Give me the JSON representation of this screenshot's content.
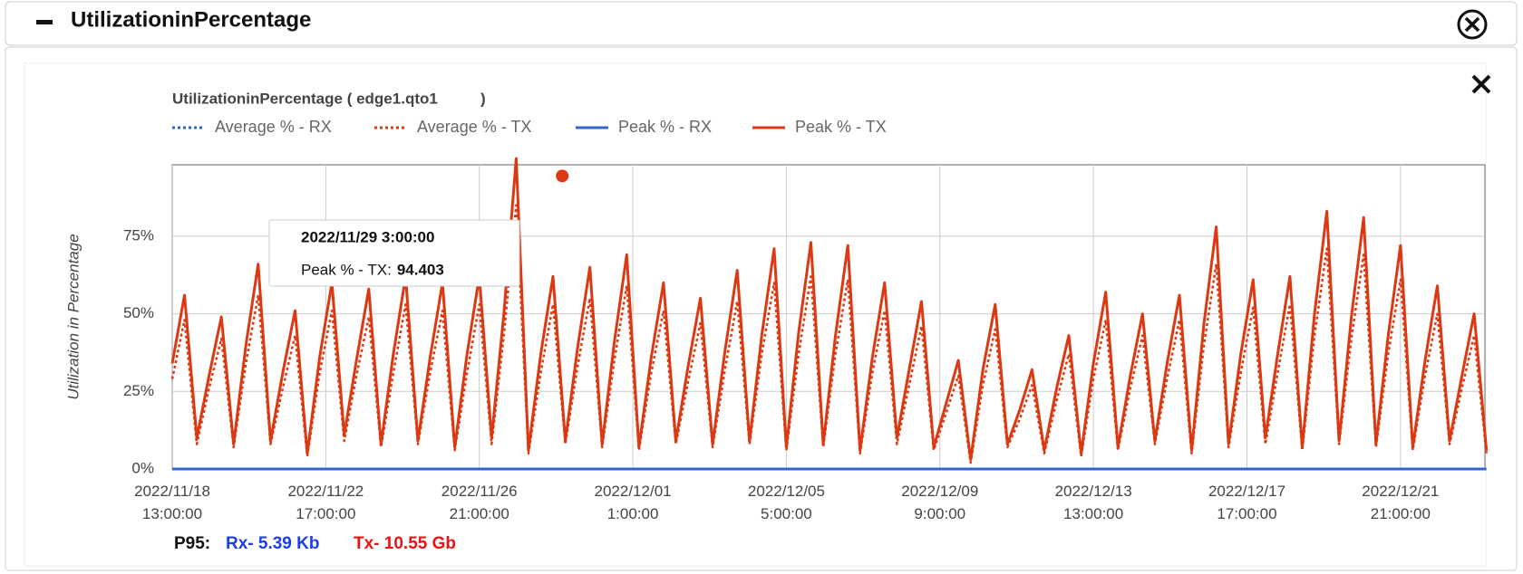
{
  "panel": {
    "title": "UtilizationinPercentage"
  },
  "footer": {
    "label": "P95:",
    "rx": "Rx- 5.39 Kb",
    "tx": "Tx- 10.55 Gb"
  },
  "chart_data": {
    "type": "line",
    "title": "UtilizationinPercentage ( edge1.qto1          )",
    "y_label": "Utilization in Percentage",
    "ylim": [
      0,
      98
    ],
    "yticks": [
      {
        "value": 0,
        "label": "0%"
      },
      {
        "value": 25,
        "label": "25%"
      },
      {
        "value": 50,
        "label": "50%"
      },
      {
        "value": 75,
        "label": "75%"
      }
    ],
    "xlim": [
      "2022/11/18 13:00:00",
      "2022/12/24 4:00:00"
    ],
    "xticks": [
      "2022/11/18 13:00:00",
      "2022/11/22 17:00:00",
      "2022/11/26 21:00:00",
      "2022/12/01 1:00:00",
      "2022/12/05 5:00:00",
      "2022/12/09 9:00:00",
      "2022/12/13 13:00:00",
      "2022/12/17 17:00:00",
      "2022/12/21 21:00:00"
    ],
    "grid": true,
    "x": [
      "2022/11/18 13:00:00",
      "2022/11/18 21:00:00",
      "2022/11/19 5:00:00",
      "2022/11/19 13:00:00",
      "2022/11/19 21:00:00",
      "2022/11/20 5:00:00",
      "2022/11/20 13:00:00",
      "2022/11/20 21:00:00",
      "2022/11/21 5:00:00",
      "2022/11/21 13:00:00",
      "2022/11/21 21:00:00",
      "2022/11/22 5:00:00",
      "2022/11/22 13:00:00",
      "2022/11/22 21:00:00",
      "2022/11/23 5:00:00",
      "2022/11/23 13:00:00",
      "2022/11/23 21:00:00",
      "2022/11/24 5:00:00",
      "2022/11/24 13:00:00",
      "2022/11/24 21:00:00",
      "2022/11/25 5:00:00",
      "2022/11/25 13:00:00",
      "2022/11/25 21:00:00",
      "2022/11/26 5:00:00",
      "2022/11/26 13:00:00",
      "2022/11/26 21:00:00",
      "2022/11/27 5:00:00",
      "2022/11/27 13:00:00",
      "2022/11/27 21:00:00",
      "2022/11/28 5:00:00",
      "2022/11/28 13:00:00",
      "2022/11/28 21:00:00",
      "2022/11/29 5:00:00",
      "2022/11/29 13:00:00",
      "2022/11/29 21:00:00",
      "2022/11/30 5:00:00",
      "2022/11/30 13:00:00",
      "2022/11/30 21:00:00",
      "2022/12/01 5:00:00",
      "2022/12/01 13:00:00",
      "2022/12/01 21:00:00",
      "2022/12/02 5:00:00",
      "2022/12/02 13:00:00",
      "2022/12/02 21:00:00",
      "2022/12/03 5:00:00",
      "2022/12/03 13:00:00",
      "2022/12/03 21:00:00",
      "2022/12/04 5:00:00",
      "2022/12/04 13:00:00",
      "2022/12/04 21:00:00",
      "2022/12/05 5:00:00",
      "2022/12/05 13:00:00",
      "2022/12/05 21:00:00",
      "2022/12/06 5:00:00",
      "2022/12/06 13:00:00",
      "2022/12/06 21:00:00",
      "2022/12/07 5:00:00",
      "2022/12/07 13:00:00",
      "2022/12/07 21:00:00",
      "2022/12/08 5:00:00",
      "2022/12/08 13:00:00",
      "2022/12/08 21:00:00",
      "2022/12/09 5:00:00",
      "2022/12/09 13:00:00",
      "2022/12/09 21:00:00",
      "2022/12/10 5:00:00",
      "2022/12/10 13:00:00",
      "2022/12/10 21:00:00",
      "2022/12/11 5:00:00",
      "2022/12/11 13:00:00",
      "2022/12/11 21:00:00",
      "2022/12/12 5:00:00",
      "2022/12/12 13:00:00",
      "2022/12/12 21:00:00",
      "2022/12/13 5:00:00",
      "2022/12/13 13:00:00",
      "2022/12/13 21:00:00",
      "2022/12/14 5:00:00",
      "2022/12/14 13:00:00",
      "2022/12/14 21:00:00",
      "2022/12/15 5:00:00",
      "2022/12/15 13:00:00",
      "2022/12/15 21:00:00",
      "2022/12/16 5:00:00",
      "2022/12/16 13:00:00",
      "2022/12/16 21:00:00",
      "2022/12/17 5:00:00",
      "2022/12/17 13:00:00",
      "2022/12/17 21:00:00",
      "2022/12/18 5:00:00",
      "2022/12/18 13:00:00",
      "2022/12/18 21:00:00",
      "2022/12/19 5:00:00",
      "2022/12/19 13:00:00",
      "2022/12/19 21:00:00",
      "2022/12/20 5:00:00",
      "2022/12/20 13:00:00",
      "2022/12/20 21:00:00",
      "2022/12/21 5:00:00",
      "2022/12/21 13:00:00",
      "2022/12/21 21:00:00",
      "2022/12/22 5:00:00",
      "2022/12/22 13:00:00",
      "2022/12/22 21:00:00",
      "2022/12/23 5:00:00",
      "2022/12/23 13:00:00",
      "2022/12/23 21:00:00",
      "2022/12/24 5:00:00"
    ],
    "series": [
      {
        "name": "Average % - RX",
        "color": "#3366cc",
        "dash": true,
        "values": [
          0,
          0,
          0,
          0,
          0,
          0,
          0,
          0,
          0,
          0,
          0,
          0,
          0,
          0,
          0,
          0,
          0,
          0,
          0,
          0,
          0,
          0,
          0,
          0,
          0,
          0,
          0,
          0,
          0,
          0,
          0,
          0,
          0,
          0,
          0,
          0,
          0,
          0,
          0,
          0,
          0,
          0,
          0,
          0,
          0,
          0,
          0,
          0,
          0,
          0,
          0,
          0,
          0,
          0,
          0,
          0,
          0,
          0,
          0,
          0,
          0,
          0,
          0,
          0,
          0,
          0,
          0,
          0,
          0,
          0,
          0,
          0,
          0,
          0,
          0,
          0,
          0,
          0,
          0,
          0,
          0,
          0,
          0,
          0,
          0,
          0,
          0,
          0,
          0,
          0,
          0,
          0,
          0,
          0,
          0,
          0,
          0,
          0,
          0,
          0,
          0,
          0,
          0,
          0,
          0,
          0,
          0,
          0
        ]
      },
      {
        "name": "Average % - TX",
        "color": "#dc3912",
        "dash": true,
        "values": [
          29,
          48,
          8,
          26,
          42,
          7,
          34,
          56,
          8,
          26,
          43,
          4,
          31,
          51,
          9,
          30,
          49,
          7,
          31,
          53,
          8,
          31,
          51,
          6,
          31,
          53,
          8,
          43,
          85,
          5,
          31,
          53,
          8,
          33,
          55,
          7,
          35,
          59,
          6,
          31,
          51,
          8,
          28,
          47,
          7,
          32,
          54,
          8,
          37,
          60,
          6,
          37,
          62,
          7,
          37,
          61,
          5,
          31,
          51,
          8,
          27,
          46,
          6,
          18,
          30,
          2,
          27,
          45,
          7,
          16,
          27,
          5,
          22,
          37,
          4,
          29,
          48,
          6,
          26,
          43,
          8,
          29,
          48,
          5,
          40,
          66,
          7,
          31,
          52,
          8,
          31,
          53,
          6,
          43,
          71,
          8,
          42,
          69,
          7,
          37,
          61,
          6,
          30,
          50,
          8,
          26,
          43,
          5
        ]
      },
      {
        "name": "Peak % - RX",
        "color": "#3366cc",
        "dash": false,
        "values": [
          0,
          0,
          0,
          0,
          0,
          0,
          0,
          0,
          0,
          0,
          0,
          0,
          0,
          0,
          0,
          0,
          0,
          0,
          0,
          0,
          0,
          0,
          0,
          0,
          0,
          0,
          0,
          0,
          0,
          0,
          0,
          0,
          0,
          0,
          0,
          0,
          0,
          0,
          0,
          0,
          0,
          0,
          0,
          0,
          0,
          0,
          0,
          0,
          0,
          0,
          0,
          0,
          0,
          0,
          0,
          0,
          0,
          0,
          0,
          0,
          0,
          0,
          0,
          0,
          0,
          0,
          0,
          0,
          0,
          0,
          0,
          0,
          0,
          0,
          0,
          0,
          0,
          0,
          0,
          0,
          0,
          0,
          0,
          0,
          0,
          0,
          0,
          0,
          0,
          0,
          0,
          0,
          0,
          0,
          0,
          0,
          0,
          0,
          0,
          0,
          0,
          0,
          0,
          0,
          0,
          0,
          0,
          0
        ]
      },
      {
        "name": "Peak % - TX",
        "color": "#dc3912",
        "dash": false,
        "values": [
          34,
          56,
          10,
          30,
          49,
          8,
          40,
          66,
          9,
          31,
          51,
          5,
          36,
          60,
          11,
          35,
          58,
          8,
          37,
          62,
          9,
          36,
          60,
          7,
          37,
          62,
          10,
          50,
          100,
          6,
          37,
          62,
          9,
          39,
          65,
          8,
          41,
          69,
          7,
          36,
          60,
          9,
          33,
          55,
          8,
          38,
          64,
          9,
          43,
          71,
          7,
          44,
          73,
          8,
          43,
          72,
          6,
          36,
          60,
          10,
          32,
          54,
          7,
          21,
          35,
          3,
          32,
          53,
          8,
          19,
          32,
          6,
          26,
          43,
          5,
          34,
          57,
          7,
          30,
          50,
          9,
          34,
          56,
          6,
          47,
          78,
          8,
          37,
          61,
          10,
          37,
          62,
          7,
          50,
          83,
          9,
          49,
          81,
          8,
          43,
          72,
          7,
          35,
          59,
          9,
          30,
          50,
          6
        ]
      }
    ],
    "tooltip": {
      "x": "2022/11/29 3:00:00",
      "label": "Peak % - TX:",
      "value": 94.403
    }
  }
}
